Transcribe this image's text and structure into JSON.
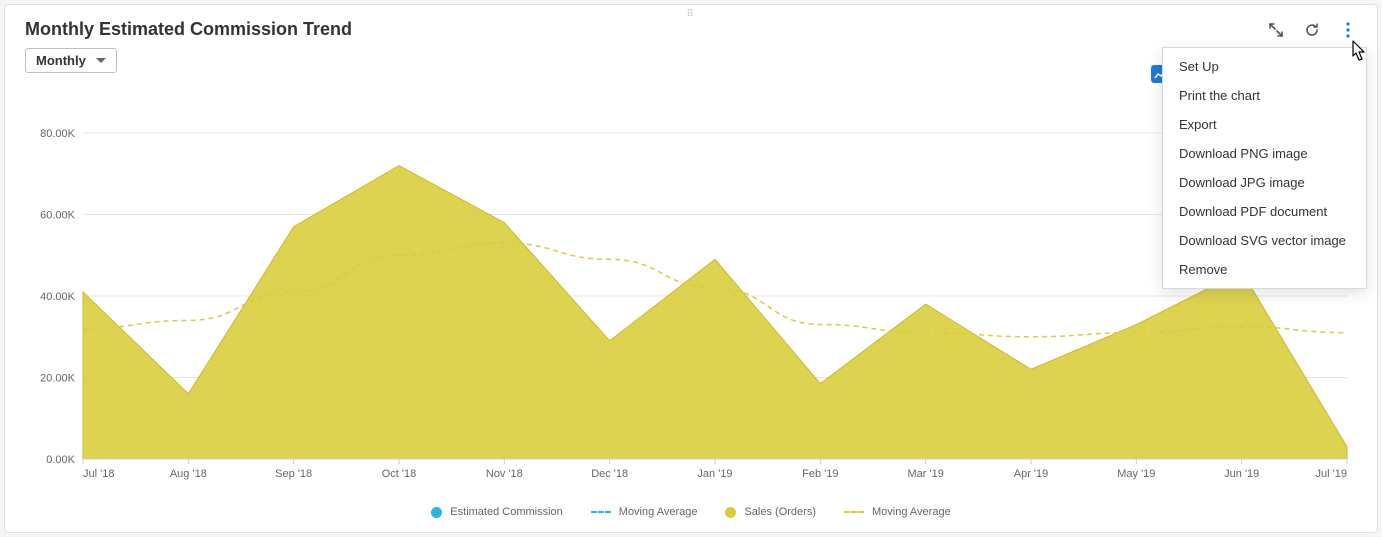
{
  "title": "Monthly Estimated Commission Trend",
  "dropdown": {
    "label": "Monthly"
  },
  "menu": {
    "items": [
      "Set Up",
      "Print the chart",
      "Export",
      "Download PNG image",
      "Download JPG image",
      "Download PDF document",
      "Download SVG vector image",
      "Remove"
    ]
  },
  "legend": {
    "series1": {
      "label": "Estimated Commission",
      "color": "#29b6e3",
      "type": "dot"
    },
    "series2": {
      "label": "Moving Average",
      "color": "#29b6e3",
      "type": "dash"
    },
    "series3": {
      "label": "Sales (Orders)",
      "color": "#d9cd38",
      "type": "dot"
    },
    "series4": {
      "label": "Moving Average",
      "color": "#d9cd38",
      "type": "dash"
    }
  },
  "chart": {
    "type": "area-line-combo",
    "background_color": "#ffffff",
    "grid_color": "#e6e6e6",
    "axis_color": "#cccccc",
    "tick_fontsize": 11,
    "tick_color": "#666666",
    "y": {
      "min": 0,
      "max": 80000,
      "tick_step": 20000,
      "tick_labels": [
        "0.00K",
        "20.00K",
        "40.00K",
        "60.00K",
        "80.00K"
      ]
    },
    "x": {
      "categories": [
        "Jul '18",
        "Aug '18",
        "Sep '18",
        "Oct '18",
        "Nov '18",
        "Dec '18",
        "Jan '19",
        "Feb '19",
        "Mar '19",
        "Apr '19",
        "May '19",
        "Jun '19",
        "Jul '19"
      ]
    },
    "area_series": {
      "name": "Sales (Orders)",
      "fill_color": "#d9cd38",
      "fill_opacity": 0.88,
      "stroke_color": "#c8bc2a",
      "stroke_width": 1,
      "values": [
        41000,
        16000,
        57000,
        72000,
        58000,
        29000,
        49000,
        18500,
        38000,
        22000,
        33000,
        46000,
        3000
      ]
    },
    "dashed_line_series": {
      "name": "Moving Average (Sales)",
      "stroke_color": "#d9cd38",
      "stroke_width": 1.5,
      "dash": "5,4",
      "values": [
        32000,
        34000,
        41000,
        50000,
        53000,
        49000,
        42000,
        33000,
        31000,
        30000,
        31000,
        32500,
        31000
      ]
    }
  }
}
